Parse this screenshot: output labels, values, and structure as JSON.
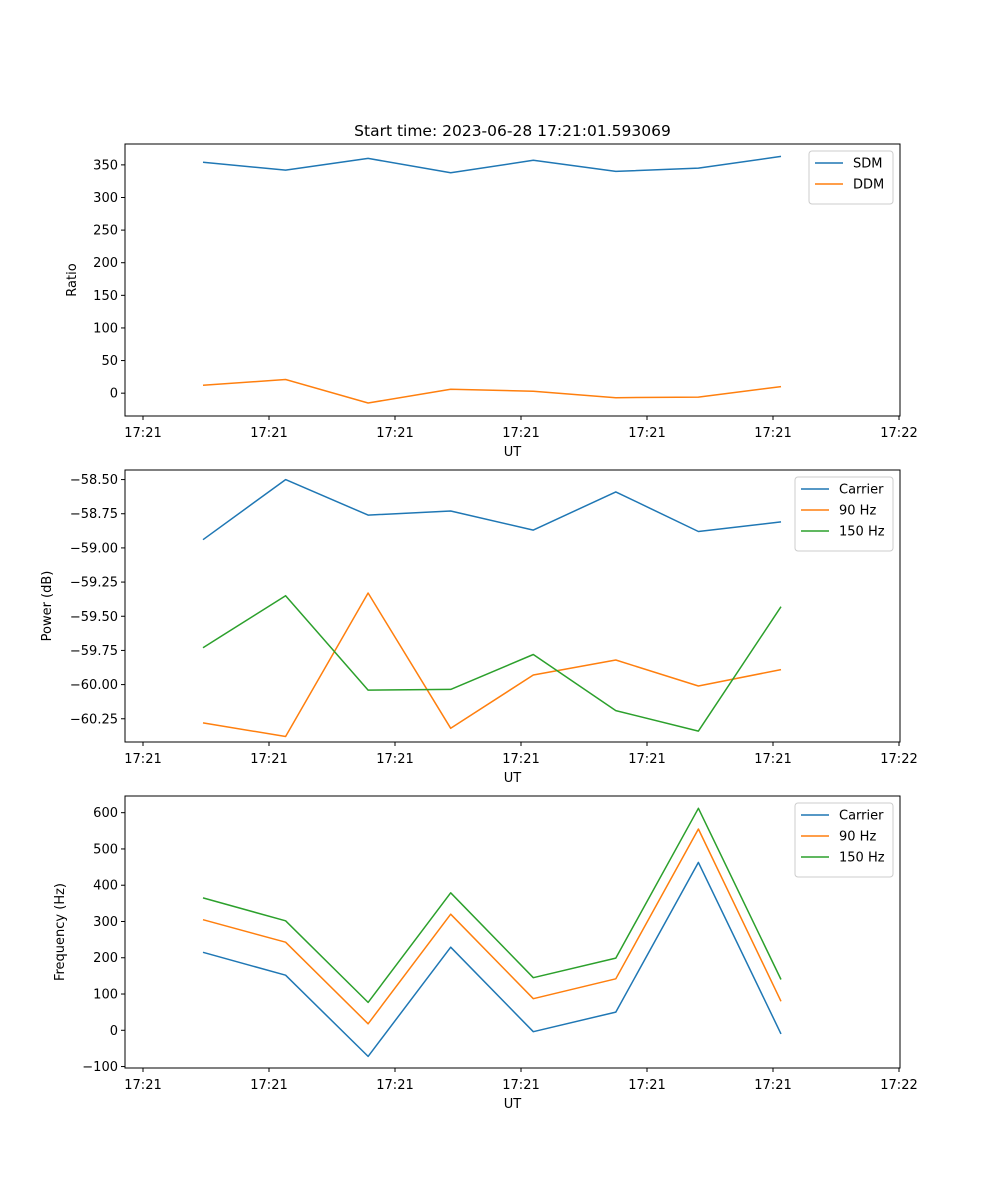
{
  "figure_title": "Start time: 2023-06-28 17:21:01.593069",
  "chart_data": [
    {
      "type": "line",
      "title": "Start time: 2023-06-28 17:21:01.593069",
      "xlabel": "UT",
      "ylabel": "Ratio",
      "x_tick_labels": [
        "17:21",
        "17:21",
        "17:21",
        "17:21",
        "17:21",
        "17:21",
        "17:22"
      ],
      "y_ticks": [
        0,
        50,
        100,
        150,
        200,
        250,
        300,
        350
      ],
      "ylim": [
        -35,
        382
      ],
      "grid": false,
      "legend_position": "top-right",
      "series": [
        {
          "name": "SDM",
          "color": "#1f77b4",
          "values": [
            354,
            342,
            360,
            338,
            357,
            340,
            345,
            363
          ]
        },
        {
          "name": "DDM",
          "color": "#ff7f0e",
          "values": [
            12,
            21,
            -15,
            6,
            3,
            -7,
            -6,
            10
          ]
        }
      ]
    },
    {
      "type": "line",
      "title": "",
      "xlabel": "UT",
      "ylabel": "Power (dB)",
      "x_tick_labels": [
        "17:21",
        "17:21",
        "17:21",
        "17:21",
        "17:21",
        "17:21",
        "17:22"
      ],
      "y_ticks": [
        -60.25,
        -60.0,
        -59.75,
        -59.5,
        -59.25,
        -59.0,
        -58.75,
        -58.5
      ],
      "y_tick_labels": [
        "−60.25",
        "−60.00",
        "−59.75",
        "−59.50",
        "−59.25",
        "−59.00",
        "−58.75",
        "−58.50"
      ],
      "ylim": [
        -60.42,
        -58.43
      ],
      "grid": false,
      "legend_position": "top-right",
      "series": [
        {
          "name": "Carrier",
          "color": "#1f77b4",
          "values": [
            -58.94,
            -58.5,
            -58.76,
            -58.73,
            -58.87,
            -58.59,
            -58.88,
            -58.81
          ]
        },
        {
          "name": "90 Hz",
          "color": "#ff7f0e",
          "values": [
            -60.28,
            -60.38,
            -59.33,
            -60.32,
            -59.93,
            -59.82,
            -60.01,
            -59.89
          ]
        },
        {
          "name": "150 Hz",
          "color": "#2ca02c",
          "values": [
            -59.73,
            -59.35,
            -60.04,
            -60.035,
            -59.78,
            -60.19,
            -60.34,
            -59.43
          ]
        }
      ]
    },
    {
      "type": "line",
      "title": "",
      "xlabel": "UT",
      "ylabel": "Frequency (Hz)",
      "x_tick_labels": [
        "17:21",
        "17:21",
        "17:21",
        "17:21",
        "17:21",
        "17:21",
        "17:22"
      ],
      "y_ticks": [
        -100,
        0,
        100,
        200,
        300,
        400,
        500,
        600
      ],
      "y_tick_labels": [
        "−100",
        "0",
        "100",
        "200",
        "300",
        "400",
        "500",
        "600"
      ],
      "ylim": [
        -104,
        646
      ],
      "grid": false,
      "legend_position": "top-right",
      "series": [
        {
          "name": "Carrier",
          "color": "#1f77b4",
          "values": [
            215,
            152,
            -72,
            229,
            -4,
            50,
            463,
            -10
          ]
        },
        {
          "name": "90 Hz",
          "color": "#ff7f0e",
          "values": [
            305,
            243,
            18,
            320,
            87,
            142,
            555,
            80
          ]
        },
        {
          "name": "150 Hz",
          "color": "#2ca02c",
          "values": [
            365,
            302,
            77,
            379,
            145,
            199,
            612,
            140
          ]
        }
      ]
    }
  ]
}
